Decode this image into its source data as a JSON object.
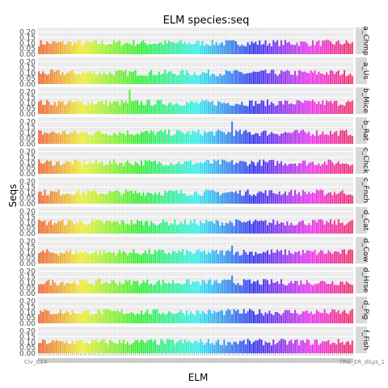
{
  "chart_data": {
    "type": "bar",
    "title": "ELM species:seq",
    "xlabel": "ELM",
    "ylabel": "Seqs",
    "y_ticks": [
      "0.00",
      "0.05",
      "0.10",
      "0.15",
      "0.20"
    ],
    "ylim": [
      0,
      0.24
    ],
    "x_tick_label_left": "Clv_C14",
    "x_tick_label_right": "TRG_ER_diLys_1",
    "grid": true,
    "legend": "none",
    "facet_strip_position": "right",
    "category_count": 160,
    "baseline_value": 0.1,
    "value_range": [
      0.07,
      0.13
    ],
    "series": [
      {
        "name": "a_Chmp",
        "spike": null
      },
      {
        "name": "a_Us",
        "spike": null
      },
      {
        "name": "b_Mice",
        "spike": {
          "index": 46,
          "value": 0.22
        }
      },
      {
        "name": "b_Rat",
        "spike": {
          "index": 98,
          "value": 0.2
        }
      },
      {
        "name": "c_Chck",
        "spike": null
      },
      {
        "name": "c_Fnch",
        "spike": null
      },
      {
        "name": "d_Cat",
        "spike": null
      },
      {
        "name": "d_Cow",
        "spike": {
          "index": 98,
          "value": 0.16
        }
      },
      {
        "name": "d_Hrse",
        "spike": {
          "index": 98,
          "value": 0.16
        }
      },
      {
        "name": "d_Pig",
        "spike": null
      },
      {
        "name": "f_Fish",
        "spike": null
      }
    ]
  }
}
